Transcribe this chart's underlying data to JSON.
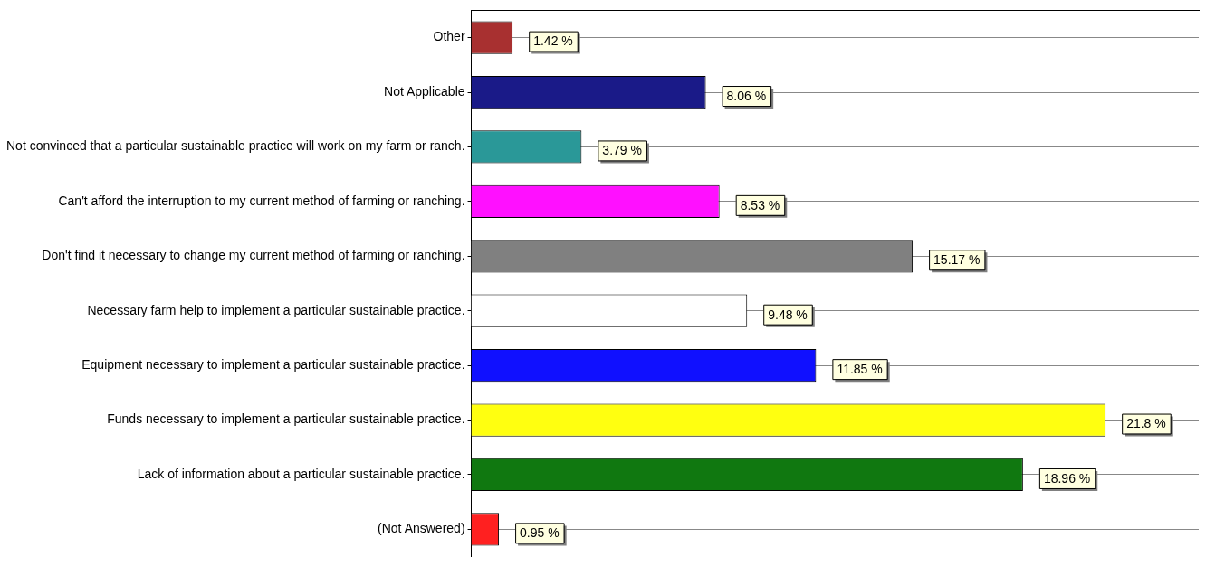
{
  "chart_data": {
    "type": "bar",
    "orientation": "horizontal",
    "categories": [
      "Other",
      "Not Applicable",
      "Not convinced that a particular sustainable practice will work on my farm or ranch.",
      "Can't afford the interruption to my current method of farming or ranching.",
      "Don't find it necessary to change my current method of farming or ranching.",
      "Necessary farm help to implement a particular sustainable practice.",
      "Equipment necessary to implement a particular sustainable practice.",
      "Funds necessary to implement a particular sustainable practice.",
      "Lack of information about a particular sustainable practice.",
      "(Not Answered)"
    ],
    "values": [
      1.42,
      8.06,
      3.79,
      8.53,
      15.17,
      9.48,
      11.85,
      21.8,
      18.96,
      0.95
    ],
    "colors": [
      "#a83030",
      "#1a1a88",
      "#2a9898",
      "#ff10ff",
      "#808080",
      "#ffffff",
      "#1010ff",
      "#ffff10",
      "#107810",
      "#ff2020"
    ],
    "value_labels": [
      "1.42 %",
      "8.06 %",
      "3.79 %",
      "8.53 %",
      "15.17 %",
      "9.48 %",
      "11.85 %",
      "21.8 %",
      "18.96 %",
      "0.95 %"
    ],
    "grid": "y",
    "tick_labels": "y",
    "legend": false
  }
}
